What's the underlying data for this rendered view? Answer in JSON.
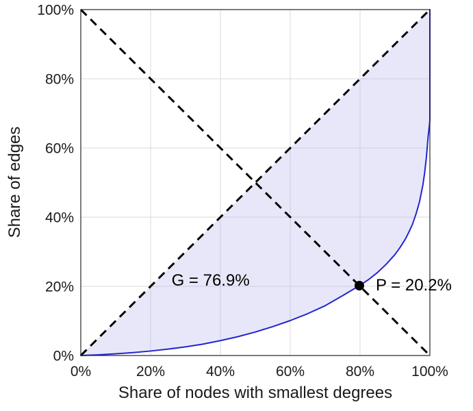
{
  "figure": {
    "background": "#ffffff"
  },
  "chart_data": {
    "type": "line",
    "title": "",
    "xlabel": "Share of nodes with smallest degrees",
    "ylabel": "Share of edges",
    "xlim": [
      0,
      100
    ],
    "ylim": [
      0,
      100
    ],
    "x_ticks": [
      0,
      20,
      40,
      60,
      80,
      100
    ],
    "x_tick_labels": [
      "0%",
      "20%",
      "40%",
      "60%",
      "80%",
      "100%"
    ],
    "y_ticks": [
      0,
      20,
      40,
      60,
      80,
      100
    ],
    "y_tick_labels": [
      "0%",
      "20%",
      "40%",
      "60%",
      "80%",
      "100%"
    ],
    "grid": true,
    "grid_color": "#d9d9d9",
    "border_color": "#262626",
    "series": [
      {
        "name": "lorenz-curve",
        "style": "solid",
        "color": "#2424d0",
        "width": 2,
        "x": [
          0,
          5,
          10,
          15,
          20,
          25,
          30,
          35,
          40,
          45,
          50,
          55,
          60,
          65,
          70,
          75,
          79.8,
          82.5,
          85,
          87.5,
          90,
          91.5,
          93,
          94,
          95,
          96,
          97,
          98,
          98.5,
          99,
          99.5,
          99.8,
          100,
          100
        ],
        "y": [
          0,
          0.2,
          0.5,
          0.85,
          1.3,
          1.85,
          2.5,
          3.3,
          4.3,
          5.45,
          6.8,
          8.35,
          10.1,
          12.1,
          14.4,
          17.3,
          20.2,
          22.0,
          24.0,
          26.4,
          29.2,
          31.3,
          33.7,
          35.7,
          37.9,
          40.8,
          44.3,
          49.3,
          52.8,
          57.3,
          63.3,
          66.0,
          68.0,
          100
        ]
      },
      {
        "name": "equality-diagonal",
        "style": "dashed",
        "color": "#000000",
        "width": 3,
        "x": [
          0,
          100
        ],
        "y": [
          0,
          100
        ]
      },
      {
        "name": "anti-diagonal",
        "style": "dashed",
        "color": "#000000",
        "width": 3,
        "x": [
          0,
          100
        ],
        "y": [
          100,
          0
        ]
      }
    ],
    "fill_between": {
      "upper": "equality-diagonal",
      "lower": "lorenz-curve",
      "color": "#babaee",
      "opacity": 0.35
    },
    "marker": {
      "x": 79.8,
      "y": 20.2,
      "radius": 7,
      "color": "#000000"
    },
    "annotations": [
      {
        "id": "gini",
        "text": "G = 76.9%",
        "x": 26,
        "y": 21.5
      },
      {
        "id": "p",
        "text": "P = 20.2%",
        "x": 84.5,
        "y": 20.2
      }
    ],
    "gini_percent": 76.9,
    "p_percent": 20.2,
    "legend": null
  }
}
